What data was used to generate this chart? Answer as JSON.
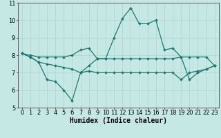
{
  "xlabel": "Humidex (Indice chaleur)",
  "xlim": [
    -0.5,
    23.5
  ],
  "ylim": [
    5,
    11
  ],
  "yticks": [
    5,
    6,
    7,
    8,
    9,
    10,
    11
  ],
  "xticks": [
    0,
    1,
    2,
    3,
    4,
    5,
    6,
    7,
    8,
    9,
    10,
    11,
    12,
    13,
    14,
    15,
    16,
    17,
    18,
    19,
    20,
    21,
    22,
    23
  ],
  "background_color": "#c5e8e5",
  "grid_color": "#aed4d1",
  "line_color": "#1e7870",
  "line1_x": [
    0,
    1,
    2,
    3,
    4,
    5,
    6,
    7,
    8,
    9,
    10,
    11,
    12,
    13,
    14,
    15,
    16,
    17,
    18,
    19,
    20,
    21,
    22,
    23
  ],
  "line1_y": [
    8.1,
    7.9,
    7.6,
    6.6,
    6.5,
    6.0,
    5.4,
    7.0,
    7.4,
    7.8,
    7.8,
    9.0,
    10.1,
    10.7,
    9.8,
    9.8,
    10.0,
    8.3,
    8.4,
    7.9,
    6.6,
    7.0,
    7.2,
    7.4
  ],
  "line2_x": [
    0,
    1,
    2,
    3,
    4,
    5,
    6,
    7,
    8,
    9,
    10,
    11,
    12,
    13,
    14,
    15,
    16,
    17,
    18,
    19,
    20,
    21,
    22,
    23
  ],
  "line2_y": [
    8.1,
    8.0,
    7.9,
    7.9,
    7.9,
    7.9,
    8.0,
    8.3,
    8.4,
    7.8,
    7.8,
    7.8,
    7.8,
    7.8,
    7.8,
    7.8,
    7.8,
    7.8,
    7.8,
    7.9,
    7.9,
    7.9,
    7.9,
    7.4
  ],
  "line3_x": [
    0,
    1,
    2,
    3,
    4,
    5,
    6,
    7,
    8,
    9,
    10,
    11,
    12,
    13,
    14,
    15,
    16,
    17,
    18,
    19,
    20,
    21,
    22,
    23
  ],
  "line3_y": [
    8.1,
    7.9,
    7.6,
    7.5,
    7.4,
    7.3,
    7.2,
    7.0,
    7.1,
    7.0,
    7.0,
    7.0,
    7.0,
    7.0,
    7.0,
    7.0,
    7.0,
    7.0,
    7.0,
    6.6,
    7.0,
    7.1,
    7.2,
    7.4
  ],
  "markersize": 2.0,
  "linewidth": 0.9,
  "xlabel_fontsize": 7,
  "tick_fontsize": 6
}
